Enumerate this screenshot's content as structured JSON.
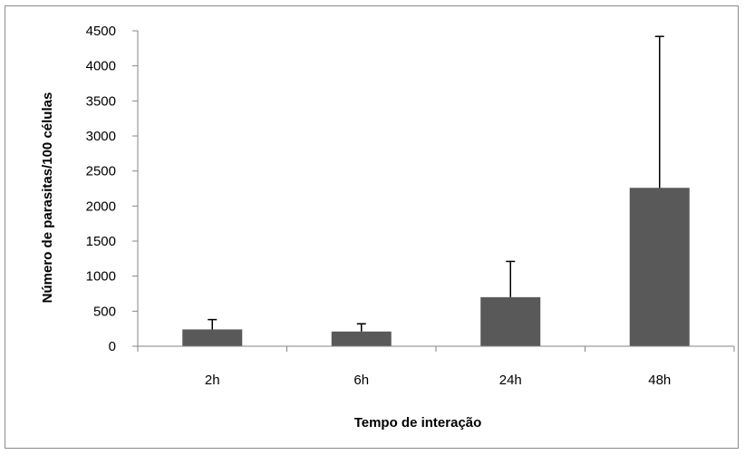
{
  "chart_data": {
    "type": "bar",
    "categories": [
      "2h",
      "6h",
      "24h",
      "48h"
    ],
    "values": [
      240,
      210,
      700,
      2260
    ],
    "error_bars": [
      140,
      110,
      510,
      2160
    ],
    "xlabel": "Tempo de interação",
    "ylabel": "Número de parasitas/100 células",
    "ylim": [
      0,
      4500
    ],
    "yticks": [
      "0",
      "500",
      "1000",
      "1500",
      "2000",
      "2500",
      "3000",
      "3500",
      "4000",
      "4500"
    ],
    "grid": false,
    "legend": "none",
    "bar_color": "#595959",
    "colors": {
      "frame": "#8c8c8c",
      "axis": "#868686",
      "error_bar": "#000000"
    }
  }
}
